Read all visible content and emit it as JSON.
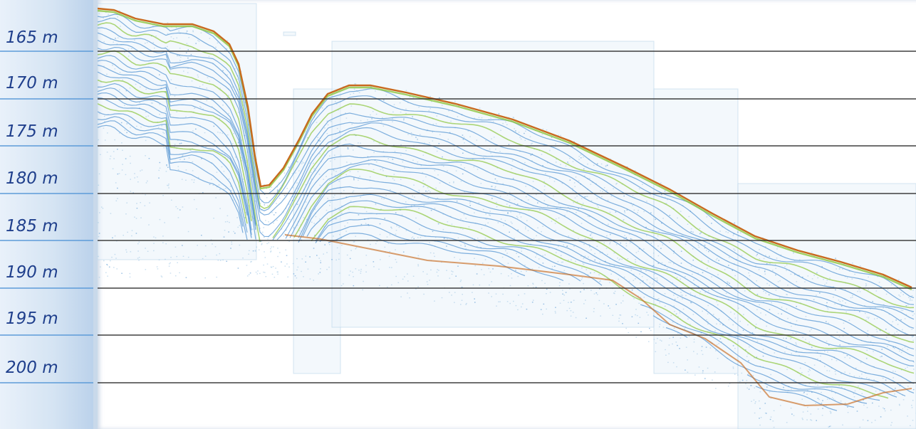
{
  "depth_axis": {
    "labels": [
      "165 m",
      "170 m",
      "175 m",
      "180 m",
      "185 m",
      "190 m",
      "195 m",
      "200 m"
    ]
  },
  "colors": {
    "label_text": "#1f3f8c",
    "sidebar_rule": "#5c9bd8",
    "grid_line": "#2a2a2a",
    "seabed_reflector": "#c86a1e",
    "strong_reflector": "#8cc63f",
    "layer_reflector": "#4a8fd0",
    "noise": "#9fc6e4"
  }
}
